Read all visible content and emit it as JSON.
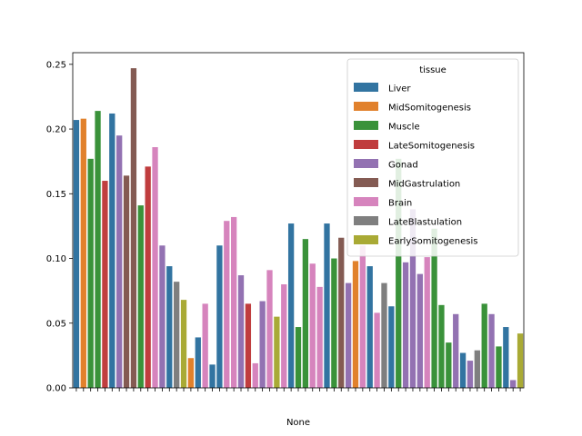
{
  "chart_data": {
    "type": "bar",
    "xlabel": "None",
    "ylabel": "",
    "ylim": [
      0,
      0.259
    ],
    "yticks": [
      "0.00",
      "0.05",
      "0.10",
      "0.15",
      "0.20",
      "0.25"
    ],
    "grid": false,
    "legend": {
      "title": "tissue",
      "placement": "top-right",
      "entries": [
        {
          "name": "Liver",
          "color": "#3274a1"
        },
        {
          "name": "MidSomitogenesis",
          "color": "#e1812c"
        },
        {
          "name": "Muscle",
          "color": "#3a923a"
        },
        {
          "name": "LateSomitogenesis",
          "color": "#c03d3e"
        },
        {
          "name": "Gonad",
          "color": "#9372b2"
        },
        {
          "name": "MidGastrulation",
          "color": "#845b53"
        },
        {
          "name": "Brain",
          "color": "#d684bd"
        },
        {
          "name": "LateBlastulation",
          "color": "#7f7f7f"
        },
        {
          "name": "EarlySomitogenesis",
          "color": "#a9aa35"
        }
      ]
    },
    "bars": [
      {
        "tissue": "Liver",
        "value": 0.207
      },
      {
        "tissue": "MidSomitogenesis",
        "value": 0.208
      },
      {
        "tissue": "Muscle",
        "value": 0.177
      },
      {
        "tissue": "Muscle",
        "value": 0.214
      },
      {
        "tissue": "LateSomitogenesis",
        "value": 0.16
      },
      {
        "tissue": "Liver",
        "value": 0.212
      },
      {
        "tissue": "Gonad",
        "value": 0.195
      },
      {
        "tissue": "MidGastrulation",
        "value": 0.164
      },
      {
        "tissue": "MidGastrulation",
        "value": 0.247
      },
      {
        "tissue": "Muscle",
        "value": 0.141
      },
      {
        "tissue": "LateSomitogenesis",
        "value": 0.171
      },
      {
        "tissue": "Brain",
        "value": 0.186
      },
      {
        "tissue": "Gonad",
        "value": 0.11
      },
      {
        "tissue": "Liver",
        "value": 0.094
      },
      {
        "tissue": "LateBlastulation",
        "value": 0.082
      },
      {
        "tissue": "EarlySomitogenesis",
        "value": 0.068
      },
      {
        "tissue": "MidSomitogenesis",
        "value": 0.023
      },
      {
        "tissue": "Liver",
        "value": 0.039
      },
      {
        "tissue": "Brain",
        "value": 0.065
      },
      {
        "tissue": "Liver",
        "value": 0.018
      },
      {
        "tissue": "Liver",
        "value": 0.11
      },
      {
        "tissue": "Brain",
        "value": 0.129
      },
      {
        "tissue": "Brain",
        "value": 0.132
      },
      {
        "tissue": "Gonad",
        "value": 0.087
      },
      {
        "tissue": "LateSomitogenesis",
        "value": 0.065
      },
      {
        "tissue": "Brain",
        "value": 0.019
      },
      {
        "tissue": "Gonad",
        "value": 0.067
      },
      {
        "tissue": "Brain",
        "value": 0.091
      },
      {
        "tissue": "EarlySomitogenesis",
        "value": 0.055
      },
      {
        "tissue": "Brain",
        "value": 0.08
      },
      {
        "tissue": "Liver",
        "value": 0.127
      },
      {
        "tissue": "Muscle",
        "value": 0.047
      },
      {
        "tissue": "Muscle",
        "value": 0.115
      },
      {
        "tissue": "Brain",
        "value": 0.096
      },
      {
        "tissue": "Brain",
        "value": 0.078
      },
      {
        "tissue": "Liver",
        "value": 0.127
      },
      {
        "tissue": "Muscle",
        "value": 0.1
      },
      {
        "tissue": "MidGastrulation",
        "value": 0.116
      },
      {
        "tissue": "Gonad",
        "value": 0.081
      },
      {
        "tissue": "MidSomitogenesis",
        "value": 0.098
      },
      {
        "tissue": "Brain",
        "value": 0.11
      },
      {
        "tissue": "Liver",
        "value": 0.094
      },
      {
        "tissue": "Brain",
        "value": 0.058
      },
      {
        "tissue": "LateBlastulation",
        "value": 0.081
      },
      {
        "tissue": "Liver",
        "value": 0.063
      },
      {
        "tissue": "Muscle",
        "value": 0.177
      },
      {
        "tissue": "Gonad",
        "value": 0.097
      },
      {
        "tissue": "Gonad",
        "value": 0.138
      },
      {
        "tissue": "Gonad",
        "value": 0.088
      },
      {
        "tissue": "Brain",
        "value": 0.101
      },
      {
        "tissue": "Muscle",
        "value": 0.123
      },
      {
        "tissue": "Muscle",
        "value": 0.064
      },
      {
        "tissue": "Muscle",
        "value": 0.035
      },
      {
        "tissue": "Gonad",
        "value": 0.057
      },
      {
        "tissue": "Liver",
        "value": 0.027
      },
      {
        "tissue": "Gonad",
        "value": 0.021
      },
      {
        "tissue": "LateBlastulation",
        "value": 0.029
      },
      {
        "tissue": "Muscle",
        "value": 0.065
      },
      {
        "tissue": "Gonad",
        "value": 0.057
      },
      {
        "tissue": "Muscle",
        "value": 0.032
      },
      {
        "tissue": "Liver",
        "value": 0.047
      },
      {
        "tissue": "Gonad",
        "value": 0.006
      },
      {
        "tissue": "EarlySomitogenesis",
        "value": 0.042
      }
    ]
  }
}
